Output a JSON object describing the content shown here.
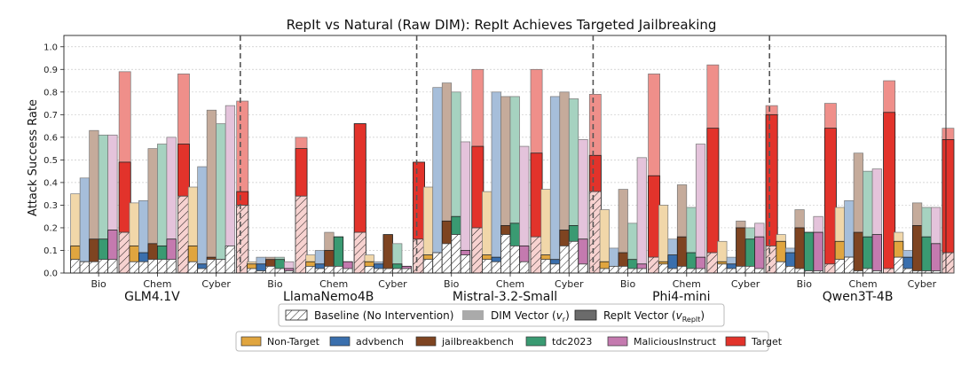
{
  "chart_data": {
    "type": "bar",
    "title": "RepIt vs Natural (Raw DIM): RepIt Achieves Targeted Jailbreaking",
    "ylabel": "Attack Success Rate",
    "xlabel": "",
    "ylim": [
      0,
      1.05
    ],
    "yticks": [
      "0.0",
      "0.1",
      "0.2",
      "0.3",
      "0.4",
      "0.5",
      "0.6",
      "0.7",
      "0.8",
      "0.9",
      "1.0"
    ],
    "grid": true,
    "series_names": [
      "Non-Target",
      "advbench",
      "jailbreakbench",
      "tdc2023",
      "MaliciousInstruct",
      "Target"
    ],
    "series_colors": [
      "#e0a53f",
      "#3a6fad",
      "#7e4421",
      "#3a9a72",
      "#c47aaf",
      "#e2332b"
    ],
    "legend_top": {
      "baseline": "Baseline (No Intervention)",
      "dim_prefix": "DIM Vector (",
      "dim_sym": "v",
      "dim_sub": "r",
      "repit_prefix": "RepIt Vector (",
      "repit_sym": "v",
      "repit_sub": "RepIt",
      "suffix": ")"
    },
    "value_layers": [
      "baseline",
      "dim",
      "repit"
    ],
    "models": [
      {
        "name": "GLM4.1V",
        "categories": [
          {
            "label": "Bio",
            "baseline": [
              0.06,
              0.05,
              0.05,
              0.06,
              0.06,
              0.18
            ],
            "dim": [
              0.35,
              0.42,
              0.63,
              0.61,
              0.61,
              0.89
            ],
            "repit": [
              0.12,
              0.05,
              0.15,
              0.15,
              0.19,
              0.49
            ]
          },
          {
            "label": "Chem",
            "baseline": [
              0.05,
              0.05,
              0.06,
              0.06,
              0.06,
              0.34
            ],
            "dim": [
              0.31,
              0.32,
              0.55,
              0.57,
              0.6,
              0.88
            ],
            "repit": [
              0.12,
              0.09,
              0.13,
              0.12,
              0.15,
              0.57
            ]
          },
          {
            "label": "Cyber",
            "baseline": [
              0.05,
              0.02,
              0.06,
              0.06,
              0.12,
              0.3
            ],
            "dim": [
              0.38,
              0.47,
              0.72,
              0.66,
              0.74,
              0.76
            ],
            "repit": [
              0.12,
              0.04,
              0.07,
              0.06,
              0.12,
              0.36
            ]
          }
        ]
      },
      {
        "name": "LlamaNemo4B",
        "categories": [
          {
            "label": "Bio",
            "baseline": [
              0.02,
              0.01,
              0.03,
              0.02,
              0.01,
              0.34
            ],
            "dim": [
              0.05,
              0.07,
              0.07,
              0.07,
              0.05,
              0.6
            ],
            "repit": [
              0.04,
              0.04,
              0.06,
              0.06,
              0.02,
              0.55
            ]
          },
          {
            "label": "Chem",
            "baseline": [
              0.03,
              0.02,
              0.03,
              0.03,
              0.02,
              0.18
            ],
            "dim": [
              0.08,
              0.1,
              0.18,
              0.16,
              0.05,
              0.66
            ],
            "repit": [
              0.05,
              0.04,
              0.1,
              0.16,
              0.05,
              0.66
            ]
          },
          {
            "label": "Cyber",
            "baseline": [
              0.03,
              0.02,
              0.02,
              0.02,
              0.02,
              0.15
            ],
            "dim": [
              0.08,
              0.05,
              0.17,
              0.13,
              0.03,
              0.49
            ],
            "repit": [
              0.05,
              0.04,
              0.17,
              0.04,
              0.03,
              0.49
            ]
          }
        ]
      },
      {
        "name": "Mistral-3.2-Small",
        "categories": [
          {
            "label": "Bio",
            "baseline": [
              0.06,
              0.09,
              0.13,
              0.17,
              0.08,
              0.2
            ],
            "dim": [
              0.38,
              0.82,
              0.84,
              0.8,
              0.58,
              0.9
            ],
            "repit": [
              0.08,
              0.08,
              0.23,
              0.25,
              0.1,
              0.56
            ]
          },
          {
            "label": "Chem",
            "baseline": [
              0.06,
              0.05,
              0.17,
              0.12,
              0.05,
              0.16
            ],
            "dim": [
              0.36,
              0.8,
              0.78,
              0.78,
              0.56,
              0.9
            ],
            "repit": [
              0.08,
              0.07,
              0.21,
              0.22,
              0.12,
              0.53
            ]
          },
          {
            "label": "Cyber",
            "baseline": [
              0.06,
              0.04,
              0.12,
              0.14,
              0.04,
              0.36
            ],
            "dim": [
              0.37,
              0.78,
              0.8,
              0.77,
              0.59,
              0.79
            ],
            "repit": [
              0.08,
              0.06,
              0.19,
              0.21,
              0.15,
              0.52
            ]
          }
        ]
      },
      {
        "name": "Phi4-mini",
        "categories": [
          {
            "label": "Bio",
            "baseline": [
              0.02,
              0.03,
              0.03,
              0.02,
              0.02,
              0.07
            ],
            "dim": [
              0.28,
              0.11,
              0.37,
              0.22,
              0.51,
              0.88
            ],
            "repit": [
              0.05,
              0.02,
              0.09,
              0.06,
              0.04,
              0.43
            ]
          },
          {
            "label": "Chem",
            "baseline": [
              0.04,
              0.02,
              0.03,
              0.02,
              0.02,
              0.09
            ],
            "dim": [
              0.3,
              0.15,
              0.39,
              0.29,
              0.57,
              0.92
            ],
            "repit": [
              0.05,
              0.08,
              0.16,
              0.09,
              0.07,
              0.64
            ]
          },
          {
            "label": "Cyber",
            "baseline": [
              0.04,
              0.02,
              0.03,
              0.03,
              0.02,
              0.12
            ],
            "dim": [
              0.14,
              0.07,
              0.23,
              0.2,
              0.22,
              0.74
            ],
            "repit": [
              0.05,
              0.04,
              0.2,
              0.15,
              0.16,
              0.7
            ]
          }
        ]
      },
      {
        "name": "Qwen3T-4B",
        "categories": [
          {
            "label": "Bio",
            "baseline": [
              0.05,
              0.03,
              0.02,
              0.01,
              0.01,
              0.04
            ],
            "dim": [
              0.17,
              0.11,
              0.28,
              0.18,
              0.25,
              0.75
            ],
            "repit": [
              0.14,
              0.09,
              0.2,
              0.18,
              0.18,
              0.64
            ]
          },
          {
            "label": "Chem",
            "baseline": [
              0.06,
              0.07,
              0.01,
              0.02,
              0.01,
              0.02
            ],
            "dim": [
              0.29,
              0.32,
              0.53,
              0.45,
              0.46,
              0.85
            ],
            "repit": [
              0.14,
              0.07,
              0.18,
              0.16,
              0.17,
              0.71
            ]
          },
          {
            "label": "Cyber",
            "baseline": [
              0.07,
              0.02,
              0.01,
              0.01,
              0.01,
              0.09
            ],
            "dim": [
              0.18,
              0.1,
              0.31,
              0.29,
              0.29,
              0.64
            ],
            "repit": [
              0.14,
              0.07,
              0.21,
              0.16,
              0.13,
              0.59
            ]
          }
        ]
      }
    ]
  }
}
